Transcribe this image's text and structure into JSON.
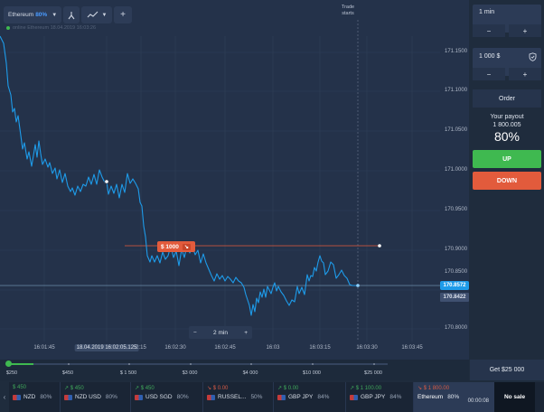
{
  "asset": {
    "name": "Ethereum",
    "payout_pct": "80%"
  },
  "online_text": "online Ethereum 18.04.2019 16:03:26",
  "trade_starts": "Trade starts",
  "y_ticks": [
    "171.1500",
    "171.1000",
    "171.0500",
    "171.0000",
    "170.9500",
    "170.9000",
    "170.8500",
    "170.8000"
  ],
  "x_ticks": [
    "16:01:45",
    "18.04.2019 16:02:05.125",
    "2:15",
    "16:02:30",
    "16:02:45",
    "16:03",
    "16:03:15",
    "16:03:30",
    "16:03:45"
  ],
  "current_price": "170.8572",
  "secondary_price": "170.8422",
  "bet_tag": {
    "amount": "$ 1000",
    "arrow": "↘"
  },
  "zoom": {
    "minus": "−",
    "label": "2 min",
    "plus": "+"
  },
  "amount_scale": [
    "$250",
    "$450",
    "$ 1 500",
    "$3 000",
    "$4 000",
    "$10 000",
    "$25 000"
  ],
  "get_button": "Get $25 000",
  "panel": {
    "time": "1 min",
    "amount": "1 000",
    "currency": "$",
    "minus": "−",
    "plus": "+",
    "order": "Order",
    "payout_title": "Your payout",
    "payout_value": "1 800.005",
    "payout_pct": "80%",
    "up": "UP",
    "down": "DOWN"
  },
  "asset_strip": [
    {
      "top": "$ 450",
      "name": "NZD",
      "pct": "80%",
      "dir": "up"
    },
    {
      "top": "↗ $ 450",
      "name": "NZD USD",
      "pct": "80%",
      "dir": "up"
    },
    {
      "top": "↗ $ 450",
      "name": "USD SGD",
      "pct": "80%",
      "dir": "up"
    },
    {
      "top": "↘ $ 0.00",
      "name": "RUSSEL...",
      "pct": "50%",
      "dir": "down"
    },
    {
      "top": "↗ $ 0.00",
      "name": "GBP JPY",
      "pct": "84%",
      "dir": "up"
    },
    {
      "top": "↗ $ 1 100.00",
      "name": "GBP JPY",
      "pct": "84%",
      "dir": "up"
    }
  ],
  "active_asset": {
    "top": "↘ $ 1 800.00",
    "name": "Ethereum",
    "pct": "80%",
    "timer": "00:00:08"
  },
  "no_sale": "No sale",
  "colors": {
    "line": "#1e9be9",
    "up": "#3fb950",
    "down": "#e25b3c",
    "bg": "#24324a"
  }
}
